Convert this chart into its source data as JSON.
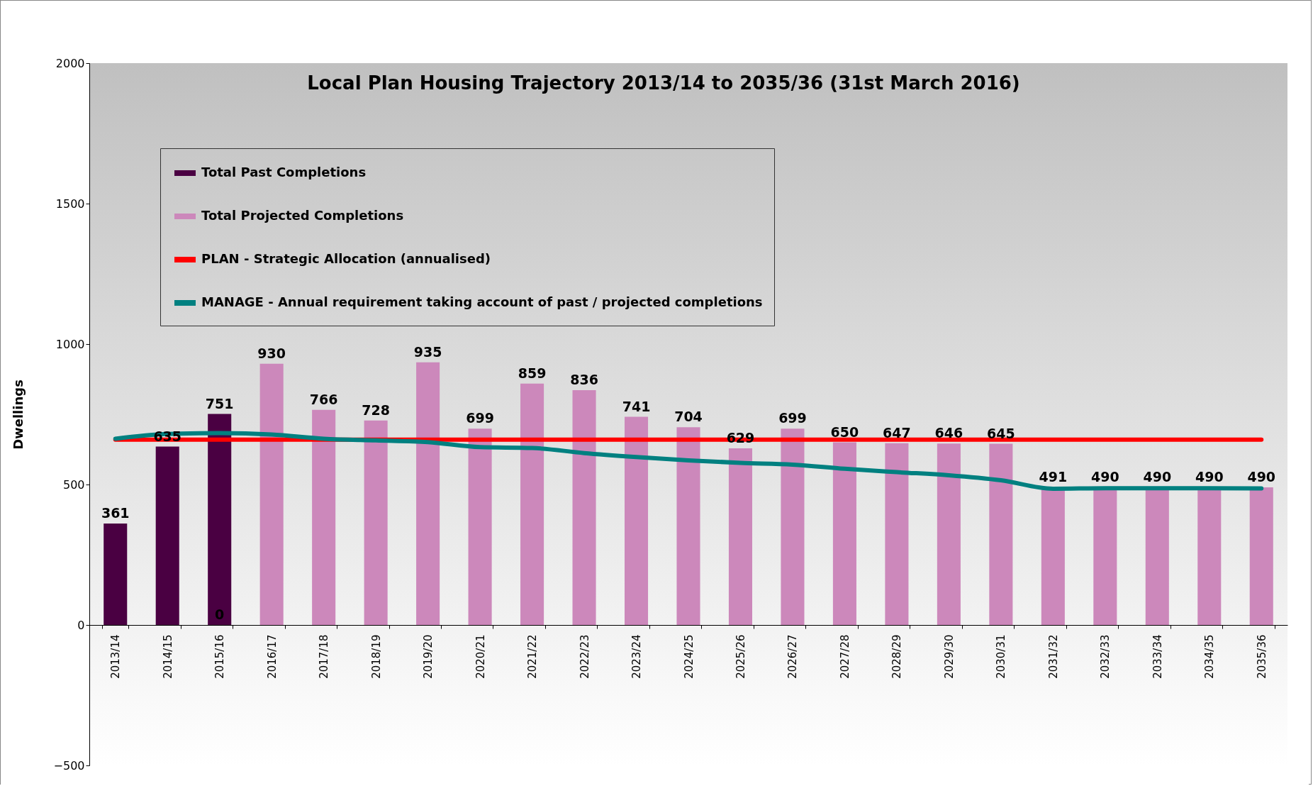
{
  "chart_data": {
    "type": "bar",
    "title": "Local Plan Housing Trajectory 2013/14 to 2035/36 (31st March 2016)",
    "ylabel": "Dwellings",
    "categories": [
      "2013/14",
      "2014/15",
      "2015/16",
      "2016/17",
      "2017/18",
      "2018/19",
      "2019/20",
      "2020/21",
      "2021/22",
      "2022/23",
      "2023/24",
      "2024/25",
      "2025/26",
      "2026/27",
      "2027/28",
      "2028/29",
      "2029/30",
      "2030/31",
      "2031/32",
      "2032/33",
      "2033/34",
      "2034/35",
      "2035/36"
    ],
    "series": [
      {
        "name": "Total Past Completions",
        "color": "#4a0042",
        "values": [
          361,
          635,
          751,
          null,
          null,
          null,
          null,
          null,
          null,
          null,
          null,
          null,
          null,
          null,
          null,
          null,
          null,
          null,
          null,
          null,
          null,
          null,
          null
        ],
        "value_labels": [
          "361",
          "635",
          "751",
          null,
          null,
          null,
          null,
          null,
          null,
          null,
          null,
          null,
          null,
          null,
          null,
          null,
          null,
          null,
          null,
          null,
          null,
          null,
          null
        ]
      },
      {
        "name": "Total Projected Completions",
        "color": "#cc88bb",
        "values": [
          null,
          null,
          0,
          930,
          766,
          728,
          935,
          699,
          859,
          836,
          741,
          704,
          629,
          699,
          650,
          647,
          646,
          645,
          491,
          490,
          490,
          490,
          490
        ],
        "value_labels": [
          null,
          null,
          "0",
          "930",
          "766",
          "728",
          "935",
          "699",
          "859",
          "836",
          "741",
          "704",
          "629",
          "699",
          "650",
          "647",
          "646",
          "645",
          "491",
          "490",
          "490",
          "490",
          "490"
        ]
      },
      {
        "name": "PLAN - Strategic Allocation (annualised)",
        "type": "line",
        "color": "#ff0000",
        "values": [
          660,
          660,
          660,
          660,
          660,
          660,
          660,
          660,
          660,
          660,
          660,
          660,
          660,
          660,
          660,
          660,
          660,
          660,
          660,
          660,
          660,
          660,
          660
        ]
      },
      {
        "name": "MANAGE - Annual requirement taking account of past / projected completions",
        "type": "line",
        "color": "#008080",
        "values": [
          663,
          680,
          683,
          678,
          663,
          657,
          651,
          633,
          630,
          612,
          598,
          586,
          577,
          571,
          556,
          544,
          533,
          515,
          485,
          487,
          487,
          487,
          486
        ]
      }
    ],
    "ylim": [
      -500,
      2000
    ],
    "yticks": [
      -500,
      0,
      500,
      1000,
      1500,
      2000
    ],
    "legend": "top left",
    "grid": false,
    "marker": "none",
    "line_style": "solid"
  }
}
